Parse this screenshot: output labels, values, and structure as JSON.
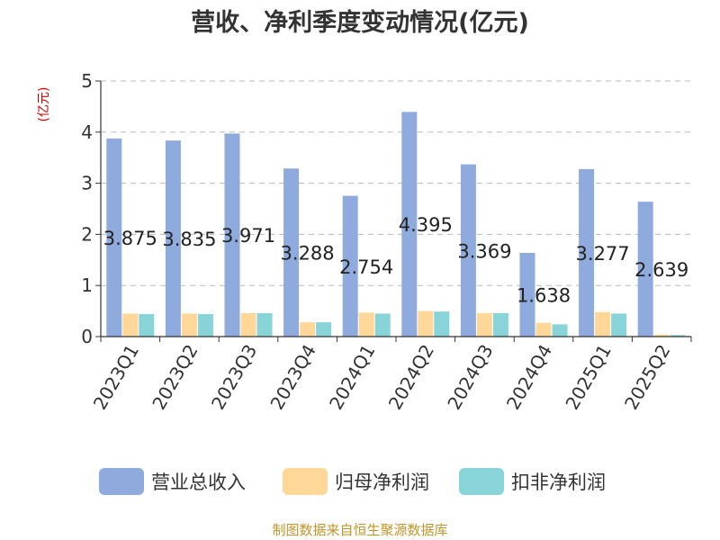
{
  "chart_data": {
    "type": "bar",
    "title": "营收、净利季度变动情况(亿元)",
    "unit_label": "(亿元)",
    "categories": [
      "2023Q1",
      "2023Q2",
      "2023Q3",
      "2023Q4",
      "2024Q1",
      "2024Q2",
      "2024Q3",
      "2024Q4",
      "2025Q1",
      "2025Q2"
    ],
    "series": [
      {
        "name": "营业总收入",
        "color": "#8faadc",
        "values": [
          3.875,
          3.835,
          3.971,
          3.288,
          2.754,
          4.395,
          3.369,
          1.638,
          3.277,
          2.639
        ],
        "labels": [
          "3.875",
          "3.835",
          "3.971",
          "3.288",
          "2.754",
          "4.395",
          "3.369",
          "1.638",
          "3.277",
          "2.639"
        ]
      },
      {
        "name": "归母净利润",
        "color": "#ffd799",
        "values": [
          0.45,
          0.45,
          0.46,
          0.28,
          0.47,
          0.5,
          0.46,
          0.27,
          0.48,
          0.04
        ]
      },
      {
        "name": "扣非净利润",
        "color": "#88d4d8",
        "values": [
          0.44,
          0.44,
          0.46,
          0.28,
          0.45,
          0.49,
          0.46,
          0.24,
          0.45,
          0.03
        ]
      }
    ],
    "yticks": [
      "0",
      "1",
      "2",
      "3",
      "4",
      "5"
    ],
    "ylim": [
      0,
      5
    ],
    "grid": true,
    "legend_position": "bottom",
    "source": "制图数据来自恒生聚源数据库"
  }
}
